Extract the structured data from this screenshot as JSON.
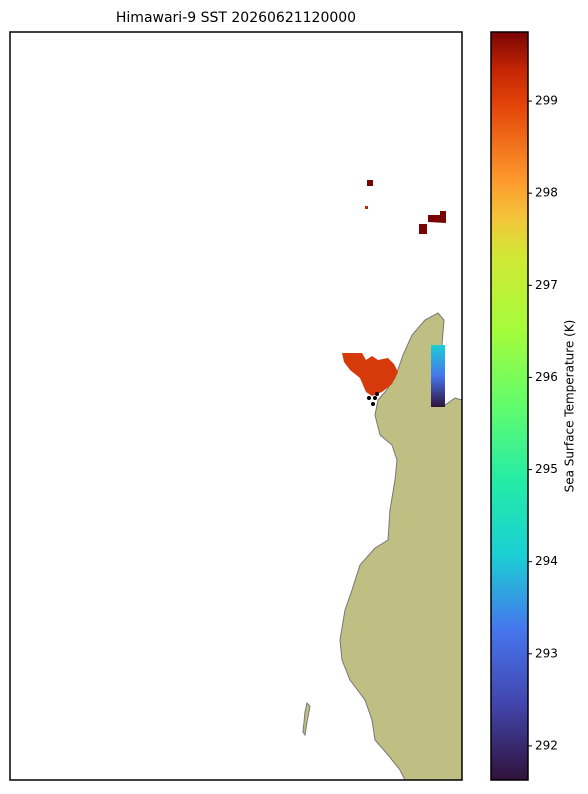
{
  "title": "Himawari-9 SST 20260621120000",
  "colorbar": {
    "label": "Sea Surface Temperature (K)",
    "lim": [
      291.63,
      299.75
    ],
    "ticks": [
      292,
      293,
      294,
      295,
      296,
      297,
      298,
      299
    ],
    "colormap": "turbo"
  }
}
